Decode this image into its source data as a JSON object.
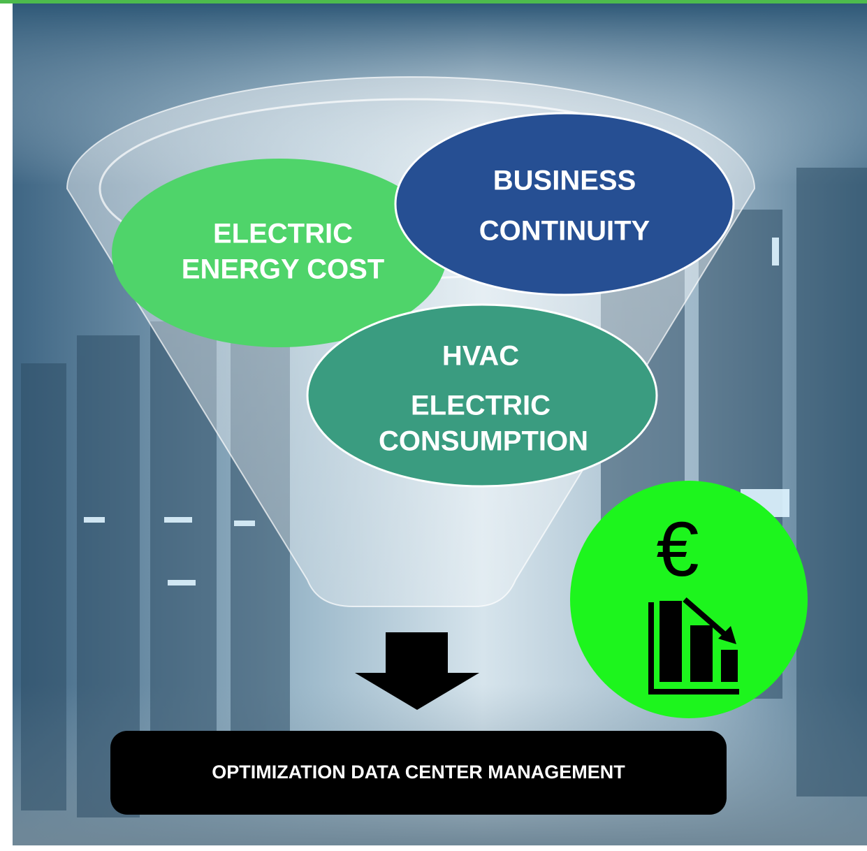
{
  "nodes": [
    {
      "lines": [
        "ELECTRIC",
        "ENERGY COST"
      ]
    },
    {
      "lines": [
        "BUSINESS",
        "CONTINUITY"
      ]
    },
    {
      "lines": [
        "HVAC",
        "ELECTRIC",
        "CONSUMPTION"
      ]
    }
  ],
  "icon": {
    "symbol": "€"
  },
  "result": {
    "label": "OPTIMIZATION DATA CENTER MANAGEMENT"
  }
}
